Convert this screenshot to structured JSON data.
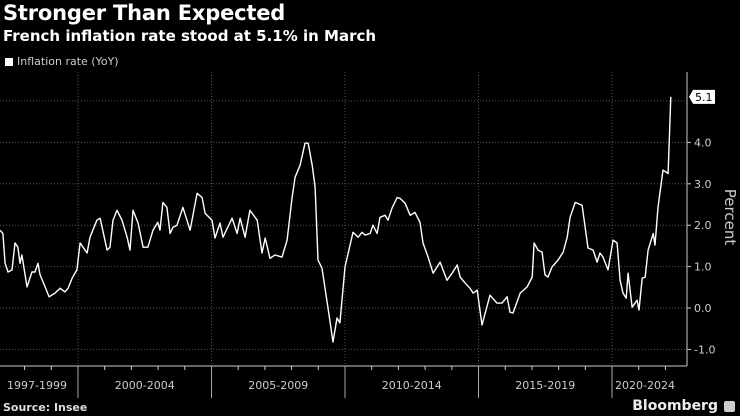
{
  "header": {
    "title": "Stronger Than Expected",
    "subtitle": "French inflation rate stood at 5.1% in March"
  },
  "footer": {
    "source": "Source: Insee",
    "brand": "Bloomberg"
  },
  "colors": {
    "background": "#000000",
    "line": "#ffffff",
    "grid": "#555555",
    "text": "#cccccc"
  },
  "chart_data": {
    "type": "line",
    "title": "Stronger Than Expected",
    "subtitle": "French inflation rate stood at 5.1% in March",
    "xlabel": "",
    "ylabel": "Percent",
    "xlim": [
      1997.08,
      2022.47
    ],
    "ylim": [
      -1.4,
      5.7
    ],
    "grid": true,
    "legend": {
      "placement": "top-left",
      "entries": [
        "Inflation rate (YoY)"
      ]
    },
    "y_ticks": [
      -1.0,
      0.0,
      1.0,
      2.0,
      3.0,
      4.0
    ],
    "y_tick_labels": [
      "-1.0",
      "0.0",
      "1.0",
      "2.0",
      "3.0",
      "4.0"
    ],
    "x_periods": [
      {
        "label": "1997-1999",
        "start": 1997.08,
        "end": 2000
      },
      {
        "label": "2000-2004",
        "start": 2000,
        "end": 2005
      },
      {
        "label": "2005-2009",
        "start": 2005,
        "end": 2010
      },
      {
        "label": "2010-2014",
        "start": 2010,
        "end": 2015
      },
      {
        "label": "2015-2019",
        "start": 2015,
        "end": 2020
      },
      {
        "label": "2020-2024",
        "start": 2020,
        "end": 2022.47
      }
    ],
    "last_value_label": "5.1",
    "series": [
      {
        "name": "Inflation rate (YoY)",
        "x": [
          1997.08,
          1997.19,
          1997.27,
          1997.38,
          1997.53,
          1997.64,
          1997.75,
          1997.83,
          1997.9,
          1998.09,
          1998.28,
          1998.39,
          1998.5,
          1998.58,
          1998.77,
          1998.92,
          1999.14,
          1999.33,
          1999.51,
          1999.63,
          1999.78,
          1999.96,
          2000.08,
          2000.34,
          2000.45,
          2000.71,
          2000.83,
          2001.09,
          2001.2,
          2001.31,
          2001.46,
          2001.65,
          2001.84,
          2001.95,
          2002.06,
          2002.25,
          2002.44,
          2002.62,
          2002.81,
          2002.99,
          2003.07,
          2003.18,
          2003.33,
          2003.45,
          2003.56,
          2003.71,
          2003.93,
          2004.2,
          2004.46,
          2004.65,
          2004.76,
          2005.02,
          2005.13,
          2005.32,
          2005.43,
          2005.77,
          2005.96,
          2006.07,
          2006.26,
          2006.44,
          2006.71,
          2006.89,
          2007.01,
          2007.19,
          2007.38,
          2007.64,
          2007.83,
          2008.02,
          2008.13,
          2008.32,
          2008.5,
          2008.62,
          2008.77,
          2008.88,
          2008.99,
          2009.14,
          2009.36,
          2009.55,
          2009.7,
          2009.81,
          2010.0,
          2010.3,
          2010.49,
          2010.64,
          2010.75,
          2010.94,
          2011.05,
          2011.2,
          2011.31,
          2011.5,
          2011.61,
          2011.76,
          2011.95,
          2012.06,
          2012.25,
          2012.44,
          2012.62,
          2012.81,
          2012.92,
          2013.11,
          2013.3,
          2013.56,
          2013.82,
          2014.01,
          2014.2,
          2014.31,
          2014.5,
          2014.68,
          2014.8,
          2014.95,
          2015.13,
          2015.43,
          2015.69,
          2015.88,
          2016.07,
          2016.18,
          2016.29,
          2016.56,
          2016.82,
          2017.01,
          2017.08,
          2017.23,
          2017.38,
          2017.49,
          2017.6,
          2017.75,
          2017.98,
          2018.17,
          2018.32,
          2018.43,
          2018.62,
          2018.88,
          2019.1,
          2019.29,
          2019.44,
          2019.55,
          2019.66,
          2019.85,
          2020.04,
          2020.19,
          2020.3,
          2020.41,
          2020.53,
          2020.6,
          2020.75,
          2020.94,
          2021.01,
          2021.13,
          2021.24,
          2021.35,
          2021.54,
          2021.61,
          2021.72,
          2021.91,
          2022.1,
          2022.2
        ],
        "values": [
          1.88,
          1.8,
          1.08,
          0.87,
          0.92,
          1.57,
          1.47,
          1.08,
          1.28,
          0.51,
          0.87,
          0.87,
          1.08,
          0.8,
          0.51,
          0.27,
          0.36,
          0.48,
          0.39,
          0.48,
          0.72,
          0.92,
          1.57,
          1.33,
          1.71,
          2.12,
          2.17,
          1.4,
          1.47,
          2.12,
          2.36,
          2.12,
          1.71,
          1.4,
          2.36,
          2.05,
          1.47,
          1.47,
          1.88,
          2.07,
          1.88,
          2.55,
          2.43,
          1.8,
          1.95,
          2.0,
          2.43,
          1.88,
          2.77,
          2.67,
          2.29,
          2.12,
          1.69,
          2.05,
          1.71,
          2.17,
          1.8,
          2.17,
          1.71,
          2.36,
          2.12,
          1.33,
          1.69,
          1.2,
          1.28,
          1.23,
          1.64,
          2.67,
          3.16,
          3.45,
          3.98,
          3.98,
          3.45,
          2.92,
          1.16,
          0.96,
          0.02,
          -0.82,
          -0.24,
          -0.36,
          0.99,
          1.83,
          1.71,
          1.83,
          1.76,
          1.8,
          2.0,
          1.8,
          2.19,
          2.24,
          2.12,
          2.41,
          2.67,
          2.65,
          2.53,
          2.24,
          2.31,
          2.07,
          1.57,
          1.23,
          0.84,
          1.11,
          0.67,
          0.84,
          1.04,
          0.75,
          0.6,
          0.48,
          0.36,
          0.43,
          -0.41,
          0.31,
          0.12,
          0.12,
          0.27,
          -0.1,
          -0.12,
          0.36,
          0.51,
          0.75,
          1.57,
          1.4,
          1.35,
          0.8,
          0.75,
          0.99,
          1.16,
          1.35,
          1.71,
          2.19,
          2.55,
          2.48,
          1.45,
          1.4,
          1.11,
          1.33,
          1.23,
          0.92,
          1.64,
          1.57,
          0.67,
          0.36,
          0.24,
          0.84,
          0.02,
          0.19,
          -0.05,
          0.72,
          0.75,
          1.4,
          1.8,
          1.52,
          2.43,
          3.33,
          3.25,
          5.1
        ]
      }
    ]
  }
}
